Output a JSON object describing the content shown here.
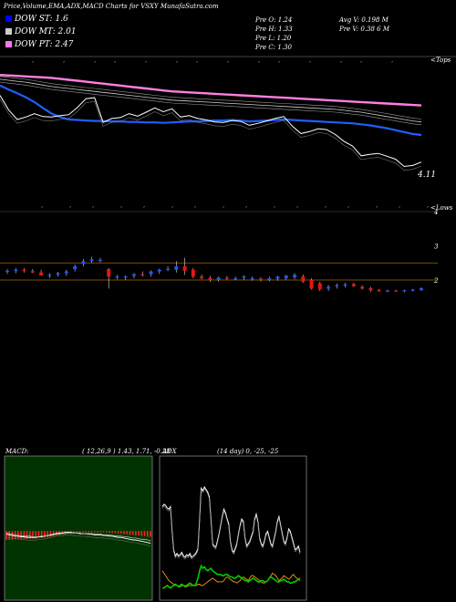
{
  "header": {
    "title": "Price,Volume,EMA,ADX,MACD Charts for VSXY MunafaSutra.com",
    "stats": [
      {
        "label": "Pre  O:",
        "value": "1.24"
      },
      {
        "label": "Pre  H:",
        "value": "1.33"
      },
      {
        "label": "Pre  L:",
        "value": "1.20"
      },
      {
        "label": "Pre  C:",
        "value": "1.30"
      },
      {
        "label": "Avg V:",
        "value": "0.198  M"
      },
      {
        "label": "Pre  V:",
        "value": "0.38         6  M"
      }
    ]
  },
  "legend": [
    {
      "label": "DOW ST:",
      "value": "1.6",
      "color": "#0000ff"
    },
    {
      "label": "DOW MT:",
      "value": "2.01",
      "color": "#cccccc"
    },
    {
      "label": "DOW PT:",
      "value": "2.47",
      "color": "#ff77ee"
    }
  ],
  "colors": {
    "up": "#2255ff",
    "down": "#ee1111",
    "line_short": "#1f5fff",
    "line_mid": "#cccccc",
    "line_long": "#ff7fe0",
    "adx_plus": "#00cc00",
    "adx_minus": "#ff9900",
    "macd_bg": "#003300",
    "level": "#aa6600"
  },
  "chart_data": [
    {
      "type": "line",
      "name": "ema-panel",
      "title": "",
      "upper_label": "<Tops",
      "lower_label": "<Lows",
      "last_value_label": "4.11",
      "series": [
        {
          "name": "DOW ST",
          "values": [
            3.2,
            3.12,
            3.04,
            2.96,
            2.86,
            2.74,
            2.62,
            2.55,
            2.5,
            2.49,
            2.48,
            2.47,
            2.47,
            2.46,
            2.46,
            2.45,
            2.45,
            2.44,
            2.44,
            2.43,
            2.44,
            2.45,
            2.46,
            2.46,
            2.47,
            2.48,
            2.48,
            2.49,
            2.48,
            2.46,
            2.47,
            2.48,
            2.49,
            2.5,
            2.49,
            2.48,
            2.47,
            2.46,
            2.45,
            2.44,
            2.43,
            2.42,
            2.4,
            2.38,
            2.35,
            2.32,
            2.28,
            2.24,
            2.2,
            2.18
          ]
        },
        {
          "name": "DOW MT",
          "values": [
            3.33,
            3.31,
            3.29,
            3.27,
            3.24,
            3.21,
            3.18,
            3.16,
            3.14,
            3.12,
            3.1,
            3.08,
            3.06,
            3.04,
            3.02,
            3.0,
            2.98,
            2.96,
            2.94,
            2.92,
            2.9,
            2.89,
            2.88,
            2.87,
            2.86,
            2.85,
            2.84,
            2.83,
            2.82,
            2.81,
            2.8,
            2.79,
            2.78,
            2.77,
            2.76,
            2.75,
            2.74,
            2.73,
            2.72,
            2.71,
            2.69,
            2.67,
            2.65,
            2.62,
            2.59,
            2.56,
            2.53,
            2.5,
            2.47,
            2.45
          ]
        },
        {
          "name": "DOW PT",
          "values": [
            3.42,
            3.41,
            3.4,
            3.39,
            3.38,
            3.37,
            3.36,
            3.34,
            3.32,
            3.3,
            3.28,
            3.26,
            3.24,
            3.22,
            3.2,
            3.18,
            3.16,
            3.14,
            3.12,
            3.1,
            3.08,
            3.07,
            3.06,
            3.05,
            3.04,
            3.03,
            3.02,
            3.01,
            3.0,
            2.99,
            2.98,
            2.97,
            2.96,
            2.95,
            2.94,
            2.93,
            2.92,
            2.91,
            2.9,
            2.89,
            2.88,
            2.87,
            2.86,
            2.85,
            2.84,
            2.83,
            2.82,
            2.81,
            2.8,
            2.79
          ]
        },
        {
          "name": "close",
          "values": [
            3.0,
            2.7,
            2.5,
            2.55,
            2.62,
            2.56,
            2.55,
            2.58,
            2.6,
            2.75,
            2.93,
            2.95,
            2.44,
            2.52,
            2.54,
            2.62,
            2.57,
            2.65,
            2.74,
            2.66,
            2.72,
            2.55,
            2.58,
            2.52,
            2.49,
            2.45,
            2.44,
            2.48,
            2.46,
            2.38,
            2.42,
            2.47,
            2.52,
            2.56,
            2.36,
            2.21,
            2.25,
            2.31,
            2.29,
            2.19,
            2.05,
            1.95,
            1.75,
            1.78,
            1.8,
            1.74,
            1.68,
            1.53,
            1.55,
            1.62
          ]
        }
      ]
    },
    {
      "type": "candlestick",
      "name": "price-panel",
      "ylim": [
        1.3,
        3.3
      ],
      "ticks": [
        {
          "value": 4,
          "label": "4"
        },
        {
          "value": 3,
          "label": "3"
        },
        {
          "value": 2,
          "label": "2"
        }
      ],
      "levels": [
        2.5,
        2.0
      ],
      "candles": [
        {
          "o": 2.25,
          "h": 2.32,
          "l": 2.18,
          "c": 2.27
        },
        {
          "o": 2.29,
          "h": 2.35,
          "l": 2.2,
          "c": 2.3
        },
        {
          "o": 2.3,
          "h": 2.35,
          "l": 2.22,
          "c": 2.27
        },
        {
          "o": 2.26,
          "h": 2.32,
          "l": 2.2,
          "c": 2.22
        },
        {
          "o": 2.22,
          "h": 2.3,
          "l": 2.14,
          "c": 2.13
        },
        {
          "o": 2.13,
          "h": 2.2,
          "l": 2.06,
          "c": 2.15
        },
        {
          "o": 2.16,
          "h": 2.24,
          "l": 2.1,
          "c": 2.2
        },
        {
          "o": 2.2,
          "h": 2.3,
          "l": 2.12,
          "c": 2.25
        },
        {
          "o": 2.32,
          "h": 2.45,
          "l": 2.25,
          "c": 2.4
        },
        {
          "o": 2.47,
          "h": 2.62,
          "l": 2.4,
          "c": 2.55
        },
        {
          "o": 2.55,
          "h": 2.68,
          "l": 2.5,
          "c": 2.6
        },
        {
          "o": 2.58,
          "h": 2.65,
          "l": 2.52,
          "c": 2.59
        },
        {
          "o": 2.32,
          "h": 2.35,
          "l": 1.75,
          "c": 2.1
        },
        {
          "o": 2.08,
          "h": 2.15,
          "l": 2.02,
          "c": 2.1
        },
        {
          "o": 2.08,
          "h": 2.14,
          "l": 2.0,
          "c": 2.1
        },
        {
          "o": 2.12,
          "h": 2.2,
          "l": 2.05,
          "c": 2.17
        },
        {
          "o": 2.17,
          "h": 2.25,
          "l": 2.1,
          "c": 2.16
        },
        {
          "o": 2.17,
          "h": 2.28,
          "l": 2.1,
          "c": 2.25
        },
        {
          "o": 2.25,
          "h": 2.33,
          "l": 2.18,
          "c": 2.3
        },
        {
          "o": 2.32,
          "h": 2.4,
          "l": 2.26,
          "c": 2.33
        },
        {
          "o": 2.3,
          "h": 2.55,
          "l": 2.22,
          "c": 2.4
        },
        {
          "o": 2.4,
          "h": 2.65,
          "l": 2.15,
          "c": 2.27
        },
        {
          "o": 2.3,
          "h": 2.35,
          "l": 2.05,
          "c": 2.1
        },
        {
          "o": 2.1,
          "h": 2.16,
          "l": 2.02,
          "c": 2.05
        },
        {
          "o": 2.06,
          "h": 2.12,
          "l": 1.95,
          "c": 2.0
        },
        {
          "o": 2.0,
          "h": 2.1,
          "l": 1.96,
          "c": 2.07
        },
        {
          "o": 2.07,
          "h": 2.12,
          "l": 2.0,
          "c": 2.04
        },
        {
          "o": 2.04,
          "h": 2.1,
          "l": 2.0,
          "c": 2.05
        },
        {
          "o": 2.07,
          "h": 2.14,
          "l": 2.0,
          "c": 2.1
        },
        {
          "o": 2.02,
          "h": 2.1,
          "l": 1.98,
          "c": 2.05
        },
        {
          "o": 2.04,
          "h": 2.08,
          "l": 1.96,
          "c": 2.0
        },
        {
          "o": 2.0,
          "h": 2.1,
          "l": 1.96,
          "c": 2.05
        },
        {
          "o": 2.04,
          "h": 2.12,
          "l": 1.98,
          "c": 2.1
        },
        {
          "o": 2.05,
          "h": 2.15,
          "l": 2.0,
          "c": 2.13
        },
        {
          "o": 2.08,
          "h": 2.2,
          "l": 2.02,
          "c": 2.15
        },
        {
          "o": 2.1,
          "h": 2.16,
          "l": 1.92,
          "c": 1.95
        },
        {
          "o": 2.0,
          "h": 2.05,
          "l": 1.72,
          "c": 1.75
        },
        {
          "o": 1.9,
          "h": 1.95,
          "l": 1.68,
          "c": 1.73
        },
        {
          "o": 1.75,
          "h": 1.85,
          "l": 1.68,
          "c": 1.8
        },
        {
          "o": 1.82,
          "h": 1.9,
          "l": 1.75,
          "c": 1.85
        },
        {
          "o": 1.85,
          "h": 1.92,
          "l": 1.78,
          "c": 1.87
        },
        {
          "o": 1.88,
          "h": 1.92,
          "l": 1.8,
          "c": 1.82
        },
        {
          "o": 1.8,
          "h": 1.84,
          "l": 1.72,
          "c": 1.75
        },
        {
          "o": 1.76,
          "h": 1.8,
          "l": 1.65,
          "c": 1.7
        },
        {
          "o": 1.7,
          "h": 1.74,
          "l": 1.66,
          "c": 1.68
        },
        {
          "o": 1.68,
          "h": 1.72,
          "l": 1.65,
          "c": 1.69
        },
        {
          "o": 1.69,
          "h": 1.72,
          "l": 1.66,
          "c": 1.67
        },
        {
          "o": 1.67,
          "h": 1.72,
          "l": 1.64,
          "c": 1.7
        },
        {
          "o": 1.7,
          "h": 1.74,
          "l": 1.67,
          "c": 1.72
        },
        {
          "o": 1.71,
          "h": 1.78,
          "l": 1.68,
          "c": 1.76
        }
      ]
    },
    {
      "type": "macd",
      "name": "macd-panel",
      "label": "MACD:",
      "params": "( 12,26,9 ) 1.43,  1.71,  -0.28",
      "ylim": [
        -1,
        1
      ],
      "macd": [
        -0.05,
        -0.06,
        -0.07,
        -0.08,
        -0.08,
        -0.09,
        -0.09,
        -0.1,
        -0.1,
        -0.1,
        -0.1,
        -0.09,
        -0.09,
        -0.08,
        -0.07,
        -0.06,
        -0.05,
        -0.04,
        -0.03,
        -0.03,
        -0.02,
        -0.02,
        -0.02,
        -0.03,
        -0.03,
        -0.04,
        -0.04,
        -0.04,
        -0.05,
        -0.05,
        -0.06,
        -0.06,
        -0.06,
        -0.07,
        -0.07,
        -0.08,
        -0.08,
        -0.09,
        -0.1,
        -0.1,
        -0.11,
        -0.12,
        -0.13,
        -0.14,
        -0.14,
        -0.15,
        -0.16,
        -0.17,
        -0.18,
        -0.19
      ],
      "signal": [
        -0.03,
        -0.04,
        -0.05,
        -0.06,
        -0.07,
        -0.07,
        -0.08,
        -0.08,
        -0.08,
        -0.09,
        -0.09,
        -0.09,
        -0.08,
        -0.08,
        -0.07,
        -0.07,
        -0.06,
        -0.05,
        -0.05,
        -0.04,
        -0.04,
        -0.03,
        -0.03,
        -0.03,
        -0.03,
        -0.03,
        -0.04,
        -0.04,
        -0.04,
        -0.04,
        -0.05,
        -0.05,
        -0.05,
        -0.06,
        -0.06,
        -0.06,
        -0.07,
        -0.07,
        -0.08,
        -0.08,
        -0.09,
        -0.09,
        -0.1,
        -0.11,
        -0.11,
        -0.12,
        -0.13,
        -0.13,
        -0.14,
        -0.15
      ],
      "hist": [
        -0.14,
        -0.14,
        -0.14,
        -0.13,
        -0.13,
        -0.13,
        -0.13,
        -0.12,
        -0.12,
        -0.12,
        -0.12,
        -0.11,
        -0.11,
        -0.1,
        -0.1,
        -0.09,
        -0.08,
        -0.07,
        -0.06,
        -0.05,
        -0.04,
        -0.03,
        -0.03,
        -0.02,
        -0.02,
        -0.02,
        -0.02,
        -0.02,
        -0.02,
        -0.02,
        -0.02,
        -0.02,
        -0.02,
        -0.02,
        -0.02,
        -0.03,
        -0.03,
        -0.03,
        -0.04,
        -0.04,
        -0.05,
        -0.05,
        -0.06,
        -0.06,
        -0.07,
        -0.07,
        -0.08,
        -0.08,
        -0.09,
        -0.09
      ]
    },
    {
      "type": "adx",
      "name": "adx-panel",
      "label": "ADX",
      "params": "(14  day) 0,  -25,  -25",
      "ylim": [
        0,
        100
      ],
      "adx": [
        70,
        72,
        71,
        69,
        68,
        70,
        50,
        35,
        30,
        32,
        30,
        31,
        33,
        30,
        29,
        31,
        30,
        32,
        29,
        30,
        31,
        33,
        36,
        60,
        85,
        83,
        86,
        84,
        82,
        78,
        60,
        40,
        38,
        37,
        42,
        48,
        55,
        62,
        68,
        65,
        60,
        56,
        42,
        35,
        33,
        36,
        40,
        48,
        55,
        60,
        58,
        45,
        38,
        40,
        42,
        46,
        50,
        60,
        64,
        58,
        45,
        40,
        38,
        42,
        48,
        50,
        45,
        40,
        38,
        44,
        50,
        58,
        62,
        55,
        48,
        42,
        40,
        45,
        52,
        50,
        45,
        40,
        35,
        36,
        38,
        33
      ],
      "plus": [
        4,
        4,
        5,
        6,
        5,
        4,
        5,
        6,
        7,
        6,
        5,
        6,
        7,
        6,
        5,
        6,
        7,
        8,
        7,
        6,
        6,
        8,
        12,
        18,
        22,
        20,
        21,
        19,
        18,
        19,
        20,
        18,
        17,
        16,
        15,
        15,
        15,
        14,
        14,
        15,
        15,
        14,
        13,
        13,
        12,
        12,
        13,
        14,
        13,
        12,
        11,
        10,
        10,
        9,
        10,
        11,
        12,
        11,
        10,
        9,
        9,
        10,
        10,
        9,
        9,
        10,
        12,
        13,
        12,
        11,
        10,
        9,
        9,
        10,
        10,
        11,
        10,
        9,
        9,
        8,
        8,
        9,
        9,
        10,
        11,
        12
      ],
      "minus": [
        18,
        16,
        14,
        12,
        10,
        9,
        8,
        7,
        6,
        6,
        5,
        5,
        6,
        6,
        6,
        5,
        6,
        6,
        6,
        6,
        6,
        6,
        7,
        7,
        6,
        6,
        7,
        8,
        9,
        10,
        11,
        12,
        11,
        10,
        9,
        9,
        9,
        9,
        10,
        12,
        13,
        12,
        11,
        10,
        9,
        9,
        8,
        9,
        10,
        12,
        13,
        12,
        11,
        10,
        12,
        14,
        14,
        13,
        12,
        11,
        10,
        9,
        8,
        8,
        9,
        10,
        12,
        14,
        16,
        15,
        14,
        12,
        10,
        11,
        12,
        14,
        13,
        12,
        11,
        12,
        14,
        15,
        13,
        12,
        11,
        10
      ]
    }
  ]
}
